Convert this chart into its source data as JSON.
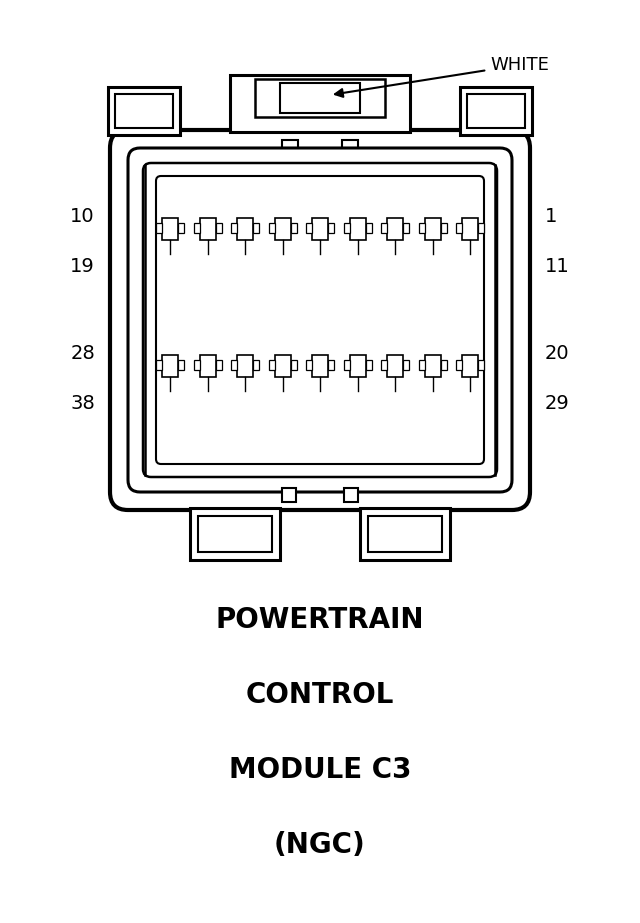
{
  "bg_color": "#ffffff",
  "line_color": "#000000",
  "title_lines": [
    "POWERTRAIN",
    "CONTROL",
    "MODULE C3",
    "(NGC)"
  ],
  "title_fontsize": 20,
  "label_left": [
    "10",
    "19",
    "28",
    "38"
  ],
  "label_right": [
    "1",
    "11",
    "20",
    "29"
  ],
  "white_label": "WHITE",
  "fig_w": 6.4,
  "fig_h": 9.23
}
